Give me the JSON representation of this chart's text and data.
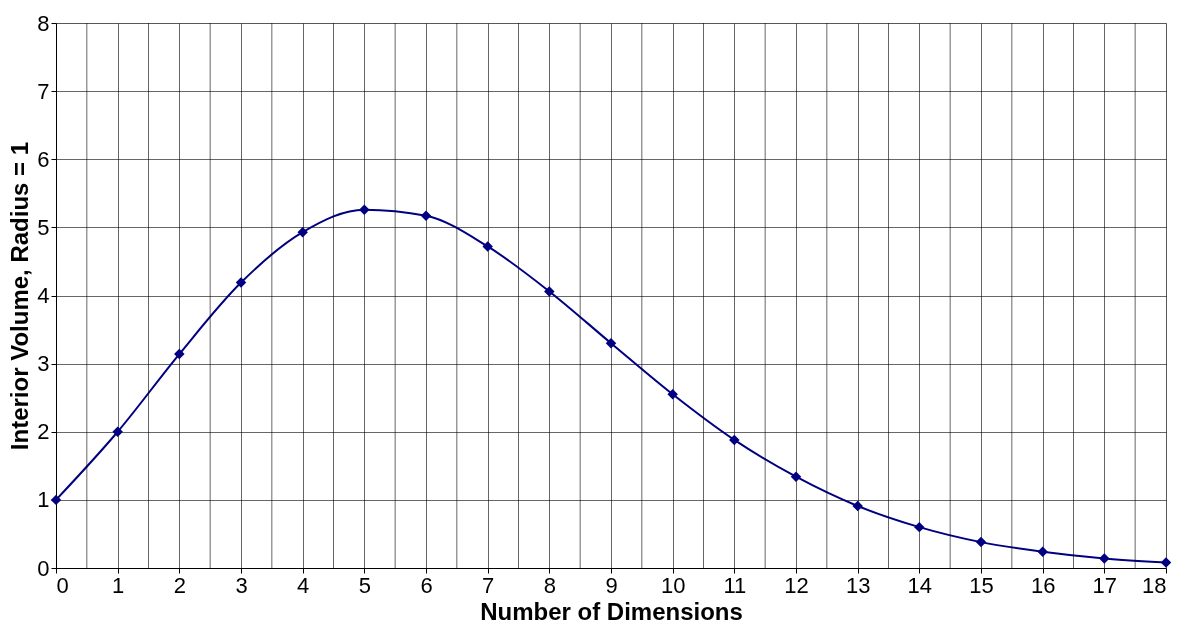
{
  "chart_data": {
    "type": "line",
    "xlabel": "Number of Dimensions",
    "ylabel": "Interior Volume, Radius = 1",
    "x": [
      0,
      1,
      2,
      3,
      4,
      5,
      6,
      7,
      8,
      9,
      10,
      11,
      12,
      13,
      14,
      15,
      16,
      17,
      18
    ],
    "series": [
      {
        "color": "#000080",
        "values": [
          1.0,
          2.0,
          3.14,
          4.19,
          4.93,
          5.26,
          5.17,
          4.72,
          4.06,
          3.3,
          2.55,
          1.88,
          1.34,
          0.91,
          0.6,
          0.38,
          0.24,
          0.14,
          0.08
        ]
      }
    ],
    "xlim": [
      0,
      18
    ],
    "xticks": [
      0,
      {
        "value": 0.5,
        "label": null
      },
      1,
      {
        "value": 1.5,
        "label": null
      },
      2,
      {
        "value": 2.5,
        "label": null
      },
      3,
      {
        "value": 3.5,
        "label": null
      },
      4,
      {
        "value": 4.5,
        "label": null
      },
      5,
      {
        "value": 5.5,
        "label": null
      },
      6,
      {
        "value": 6.5,
        "label": null
      },
      7,
      {
        "value": 7.5,
        "label": null
      },
      8,
      {
        "value": 8.5,
        "label": null
      },
      9,
      {
        "value": 9.5,
        "label": null
      },
      10,
      {
        "value": 10.5,
        "label": null
      },
      11,
      {
        "value": 11.5,
        "label": null
      },
      12,
      {
        "value": 12.5,
        "label": null
      },
      13,
      {
        "value": 13.5,
        "label": null
      },
      14,
      {
        "value": 14.5,
        "label": null
      },
      15,
      {
        "value": 15.5,
        "label": null
      },
      16,
      {
        "value": 16.5,
        "label": null
      },
      17,
      {
        "value": 17.5,
        "label": null
      },
      18
    ],
    "ylim": [
      0,
      8
    ],
    "yticks": [
      0,
      1,
      2,
      3,
      4,
      5,
      6,
      7,
      8
    ],
    "grid": true,
    "marker": "diamond",
    "line_style": "solid"
  }
}
